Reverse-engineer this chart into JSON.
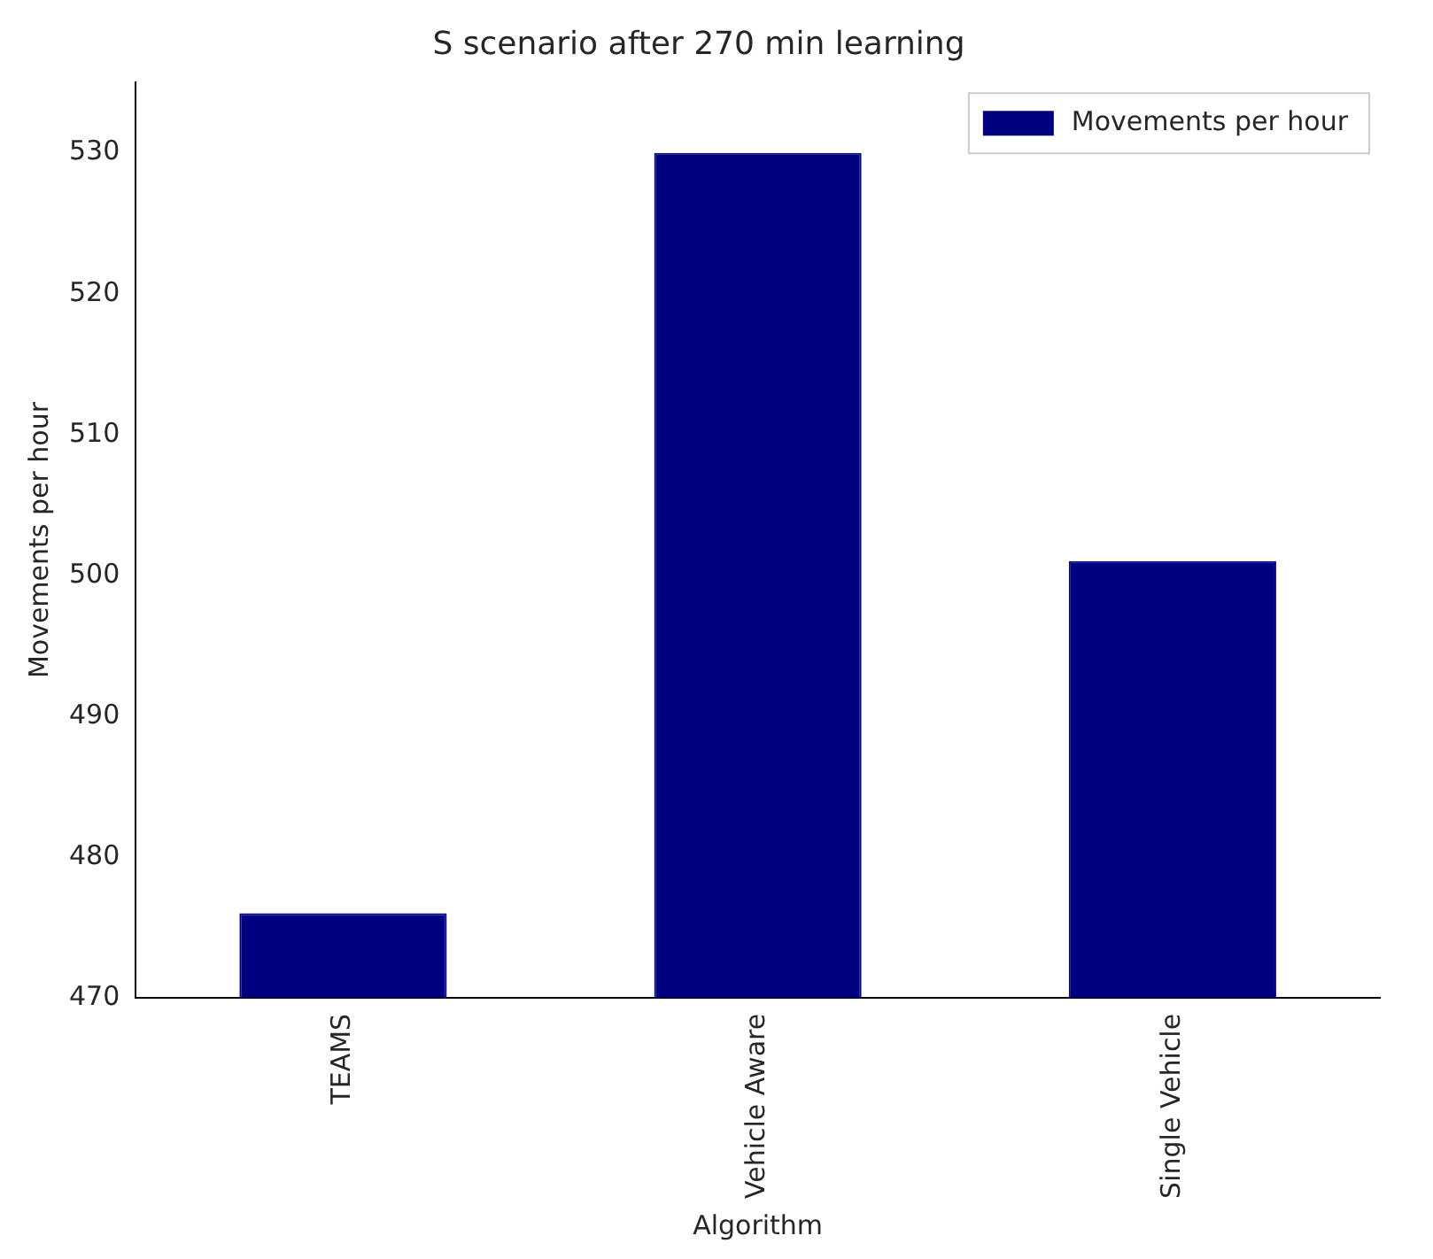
{
  "chart_data": {
    "type": "bar",
    "title": "S scenario after 270 min learning",
    "xlabel": "Algorithm",
    "ylabel": "Movements per hour",
    "categories": [
      "TEAMS",
      "Vehicle Aware",
      "Single Vehicle"
    ],
    "series": [
      {
        "name": "Movements per hour",
        "color": "#000080",
        "values": [
          476,
          530,
          501
        ]
      }
    ],
    "ylim": [
      470,
      535
    ],
    "yticks": [
      470,
      480,
      490,
      500,
      510,
      520,
      530
    ],
    "grid": false,
    "legend": "top right"
  }
}
